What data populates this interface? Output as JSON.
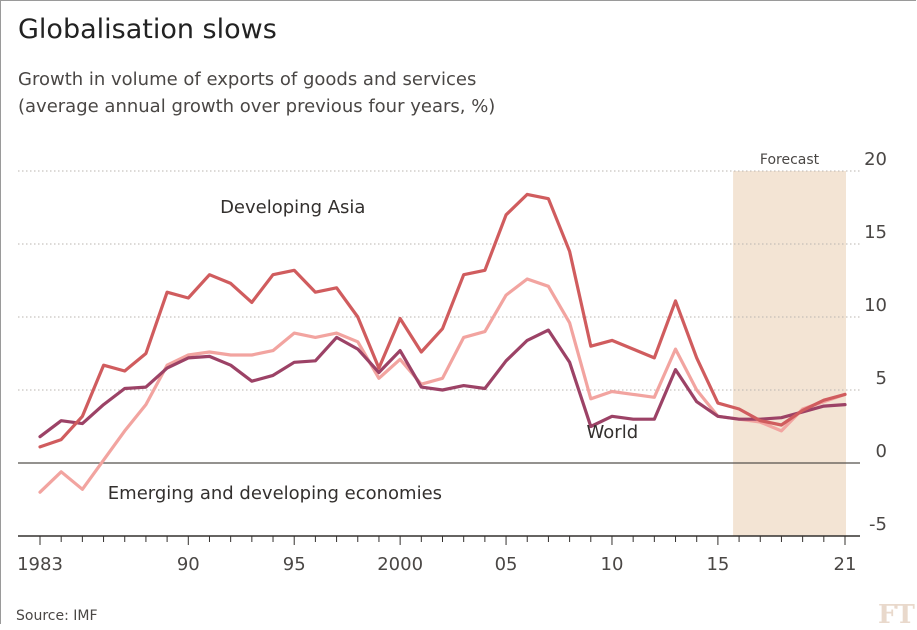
{
  "title": "Globalisation slows",
  "subtitle_line1": "Growth in volume of exports of goods and services",
  "subtitle_line2": "(average annual growth over previous four years, %)",
  "source": "Source: IMF",
  "logo": "FT",
  "colors": {
    "developing_asia": "#d05c5e",
    "emerging": "#f2a4a0",
    "world": "#9c4266",
    "forecast_band": "#f3e4d4",
    "grid": "#b9b4af",
    "background": "#ffffff"
  },
  "chart_data": {
    "type": "line",
    "title": "Globalisation slows",
    "xlabel": "",
    "ylabel": "",
    "xlim": [
      1983,
      2021
    ],
    "ylim": [
      -5,
      20
    ],
    "y_ticks": [
      -5,
      0,
      5,
      10,
      15,
      20
    ],
    "y_axis_side": "right",
    "grid": "horizontal dotted",
    "x_ticks": [
      {
        "value": 1983,
        "label": "1983"
      },
      {
        "value": 1990,
        "label": "90"
      },
      {
        "value": 1995,
        "label": "95"
      },
      {
        "value": 2000,
        "label": "2000"
      },
      {
        "value": 2005,
        "label": "05"
      },
      {
        "value": 2010,
        "label": "10"
      },
      {
        "value": 2015,
        "label": "15"
      },
      {
        "value": 2021,
        "label": "21"
      }
    ],
    "forecast": {
      "label": "Forecast",
      "from": 2016,
      "to": 2021
    },
    "x": [
      1983,
      1984,
      1985,
      1986,
      1987,
      1988,
      1989,
      1990,
      1991,
      1992,
      1993,
      1994,
      1995,
      1996,
      1997,
      1998,
      1999,
      2000,
      2001,
      2002,
      2003,
      2004,
      2005,
      2006,
      2007,
      2008,
      2009,
      2010,
      2011,
      2012,
      2013,
      2014,
      2015,
      2016,
      2017,
      2018,
      2019,
      2020,
      2021
    ],
    "series": [
      {
        "name": "Developing Asia",
        "color_key": "developing_asia",
        "label_at": {
          "x": 1991.5,
          "y": 17.6
        },
        "values": [
          1.1,
          1.6,
          3.2,
          6.7,
          6.3,
          7.5,
          11.7,
          11.3,
          12.9,
          12.3,
          11.0,
          12.9,
          13.2,
          11.7,
          12.0,
          10.0,
          6.5,
          9.9,
          7.6,
          9.2,
          12.9,
          13.2,
          17.0,
          18.4,
          18.1,
          14.5,
          8.0,
          8.4,
          7.8,
          7.2,
          11.1,
          7.2,
          4.1,
          3.7,
          2.9,
          2.6,
          3.6,
          4.3,
          4.7
        ]
      },
      {
        "name": "Emerging and developing economies",
        "color_key": "emerging",
        "label_at": {
          "x": 1986.2,
          "y": -2.0
        },
        "values": [
          -2.0,
          -0.6,
          -1.8,
          0.2,
          2.2,
          4.0,
          6.7,
          7.4,
          7.6,
          7.4,
          7.4,
          7.7,
          8.9,
          8.6,
          8.9,
          8.3,
          5.8,
          7.1,
          5.4,
          5.8,
          8.6,
          9.0,
          11.5,
          12.6,
          12.1,
          9.6,
          4.4,
          4.9,
          4.7,
          4.5,
          7.8,
          5.0,
          3.2,
          3.0,
          2.8,
          2.2,
          3.7,
          4.2,
          4.7
        ]
      },
      {
        "name": "World",
        "color_key": "world",
        "label_at": {
          "x": 2008.8,
          "y": 2.2
        },
        "values": [
          1.8,
          2.9,
          2.7,
          4.0,
          5.1,
          5.2,
          6.5,
          7.2,
          7.3,
          6.7,
          5.6,
          6.0,
          6.9,
          7.0,
          8.6,
          7.8,
          6.2,
          7.7,
          5.2,
          5.0,
          5.3,
          5.1,
          7.0,
          8.4,
          9.1,
          6.9,
          2.5,
          3.2,
          3.0,
          3.0,
          6.4,
          4.2,
          3.2,
          3.0,
          3.0,
          3.1,
          3.5,
          3.9,
          4.0
        ]
      }
    ]
  }
}
